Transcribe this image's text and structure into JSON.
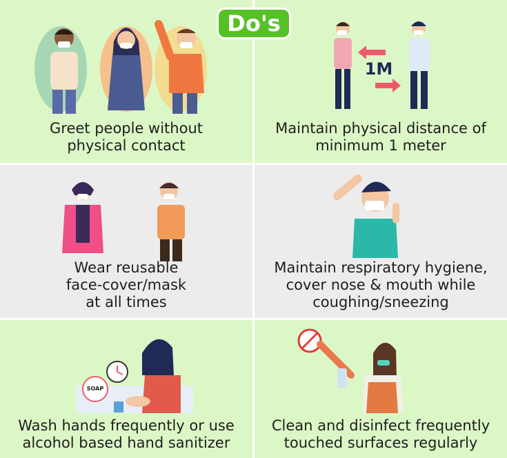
{
  "title": "Do's",
  "cells": [
    {
      "caption": "Greet people without\nphysical contact"
    },
    {
      "caption": "Maintain physical distance of\nminimum 1 meter",
      "distance_label": "1M"
    },
    {
      "caption": "Wear reusable\nface-cover/mask\nat all times"
    },
    {
      "caption": "Maintain respiratory hygiene,\ncover nose & mouth while\ncoughing/sneezing"
    },
    {
      "caption": "Wash hands frequently or use\nalcohol based hand sanitizer",
      "soap_label": "SOAP"
    },
    {
      "caption": "Clean and disinfect frequently\ntouched surfaces regularly"
    }
  ],
  "colors": {
    "green_bg": "#dcf7c6",
    "grey_bg": "#ececec",
    "badge": "#56c126"
  }
}
